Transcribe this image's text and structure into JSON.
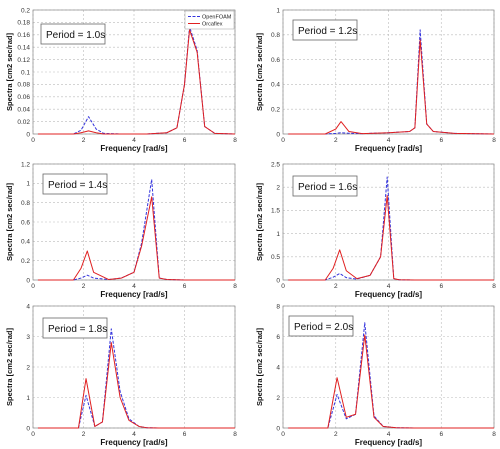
{
  "legend": {
    "position": "top-right of first panel",
    "entries": [
      {
        "label": "OpenFOAM",
        "color": "#3333dd",
        "dash": "dashed"
      },
      {
        "label": "Orcaflex",
        "color": "#e02020",
        "dash": "solid"
      }
    ]
  },
  "chart_data": [
    {
      "type": "line",
      "annotation": "Period = 1.0s",
      "xlabel": "Frequency [rad/s]",
      "ylabel": "Spectra [cm2 sec/rad]",
      "xlim": [
        0,
        8
      ],
      "ylim": [
        0,
        0.2
      ],
      "xticks": [
        0,
        2,
        4,
        6,
        8
      ],
      "yticks": [
        0,
        0.02,
        0.04,
        0.06,
        0.08,
        0.1,
        0.12,
        0.14,
        0.16,
        0.18,
        0.2
      ],
      "grid": true,
      "series": [
        {
          "name": "OpenFOAM",
          "color": "#3333dd",
          "dash": "dashed",
          "x": [
            0.2,
            1.6,
            1.9,
            2.2,
            2.5,
            2.8,
            3.5,
            4.5,
            5.3,
            5.7,
            6.0,
            6.2,
            6.5,
            6.8,
            7.2,
            8.0
          ],
          "y": [
            0.0,
            0.0,
            0.006,
            0.028,
            0.008,
            0.001,
            0.0,
            0.0,
            0.002,
            0.01,
            0.08,
            0.173,
            0.135,
            0.012,
            0.001,
            0.0
          ]
        },
        {
          "name": "Orcaflex",
          "color": "#e02020",
          "dash": "solid",
          "x": [
            0.2,
            1.6,
            1.9,
            2.2,
            2.5,
            2.8,
            3.5,
            4.5,
            5.3,
            5.7,
            6.0,
            6.2,
            6.5,
            6.8,
            7.2,
            8.0
          ],
          "y": [
            0.0,
            0.0,
            0.002,
            0.005,
            0.002,
            0.0,
            0.0,
            0.0,
            0.002,
            0.01,
            0.08,
            0.168,
            0.132,
            0.012,
            0.001,
            0.0
          ]
        }
      ]
    },
    {
      "type": "line",
      "annotation": "Period = 1.2s",
      "xlabel": "Frequency [rad/s]",
      "ylabel": "Spectra [cm2 sec/rad]",
      "xlim": [
        0,
        8
      ],
      "ylim": [
        0,
        1
      ],
      "xticks": [
        0,
        2,
        4,
        6,
        8
      ],
      "yticks": [
        0,
        0.2,
        0.4,
        0.6,
        0.8,
        1
      ],
      "grid": true,
      "series": [
        {
          "name": "OpenFOAM",
          "color": "#3333dd",
          "dash": "dashed",
          "x": [
            0.2,
            1.6,
            2.0,
            2.2,
            2.5,
            3.0,
            4.0,
            4.8,
            5.0,
            5.2,
            5.45,
            5.7,
            6.5,
            8.0
          ],
          "y": [
            0.0,
            0.0,
            0.005,
            0.01,
            0.006,
            0.003,
            0.01,
            0.02,
            0.05,
            0.84,
            0.08,
            0.02,
            0.005,
            0.0
          ]
        },
        {
          "name": "Orcaflex",
          "color": "#e02020",
          "dash": "solid",
          "x": [
            0.2,
            1.6,
            2.0,
            2.2,
            2.5,
            3.0,
            4.0,
            4.8,
            5.0,
            5.2,
            5.45,
            5.7,
            6.5,
            8.0
          ],
          "y": [
            0.0,
            0.0,
            0.04,
            0.1,
            0.02,
            0.003,
            0.01,
            0.02,
            0.05,
            0.76,
            0.08,
            0.02,
            0.005,
            0.0
          ]
        }
      ]
    },
    {
      "type": "line",
      "annotation": "Period = 1.4s",
      "xlabel": "Frequency [rad/s]",
      "ylabel": "Spectra [cm2 sec/rad]",
      "xlim": [
        0,
        8
      ],
      "ylim": [
        0,
        1.2
      ],
      "xticks": [
        0,
        2,
        4,
        6,
        8
      ],
      "yticks": [
        0,
        0.2,
        0.4,
        0.6,
        0.8,
        1,
        1.2
      ],
      "grid": true,
      "series": [
        {
          "name": "OpenFOAM",
          "color": "#3333dd",
          "dash": "dashed",
          "x": [
            0.2,
            1.6,
            1.9,
            2.15,
            2.4,
            3.0,
            3.5,
            4.0,
            4.3,
            4.7,
            5.0,
            5.3,
            6.0,
            8.0
          ],
          "y": [
            0.0,
            0.0,
            0.02,
            0.05,
            0.02,
            0.005,
            0.02,
            0.08,
            0.38,
            1.04,
            0.02,
            0.005,
            0.0,
            0.0
          ]
        },
        {
          "name": "Orcaflex",
          "color": "#e02020",
          "dash": "solid",
          "x": [
            0.2,
            1.6,
            1.9,
            2.15,
            2.4,
            3.0,
            3.5,
            4.0,
            4.3,
            4.7,
            5.0,
            5.3,
            6.0,
            8.0
          ],
          "y": [
            0.0,
            0.0,
            0.12,
            0.3,
            0.08,
            0.005,
            0.02,
            0.08,
            0.35,
            0.86,
            0.02,
            0.005,
            0.0,
            0.0
          ]
        }
      ]
    },
    {
      "type": "line",
      "annotation": "Period = 1.6s",
      "xlabel": "Frequency [rad/s]",
      "ylabel": "Spectra [cm2 sec/rad]",
      "xlim": [
        0,
        8
      ],
      "ylim": [
        0,
        2.5
      ],
      "xticks": [
        0,
        2,
        4,
        6,
        8
      ],
      "yticks": [
        0,
        0.5,
        1,
        1.5,
        2,
        2.5
      ],
      "grid": true,
      "series": [
        {
          "name": "OpenFOAM",
          "color": "#3333dd",
          "dash": "dashed",
          "x": [
            0.2,
            1.6,
            1.9,
            2.15,
            2.4,
            2.8,
            3.3,
            3.7,
            3.95,
            4.2,
            4.4,
            5.0,
            8.0
          ],
          "y": [
            0.0,
            0.0,
            0.06,
            0.14,
            0.05,
            0.02,
            0.1,
            0.5,
            2.22,
            0.03,
            0.005,
            0.0,
            0.0
          ]
        },
        {
          "name": "Orcaflex",
          "color": "#e02020",
          "dash": "solid",
          "x": [
            0.2,
            1.6,
            1.9,
            2.15,
            2.4,
            2.8,
            3.3,
            3.7,
            3.95,
            4.2,
            4.4,
            5.0,
            8.0
          ],
          "y": [
            0.0,
            0.0,
            0.25,
            0.65,
            0.2,
            0.03,
            0.1,
            0.5,
            1.82,
            0.03,
            0.005,
            0.0,
            0.0
          ]
        }
      ]
    },
    {
      "type": "line",
      "annotation": "Period = 1.8s",
      "xlabel": "Frequency [rad/s]",
      "ylabel": "Spectra [cm2 sec/rad]",
      "xlim": [
        0,
        8
      ],
      "ylim": [
        0,
        4
      ],
      "xticks": [
        0,
        2,
        4,
        6,
        8
      ],
      "yticks": [
        0,
        1,
        2,
        3,
        4
      ],
      "grid": true,
      "series": [
        {
          "name": "OpenFOAM",
          "color": "#3333dd",
          "dash": "dashed",
          "x": [
            0.2,
            1.8,
            2.1,
            2.45,
            2.75,
            3.1,
            3.45,
            3.8,
            4.2,
            4.5,
            5.0,
            8.0
          ],
          "y": [
            0.0,
            0.0,
            1.07,
            0.05,
            0.2,
            3.25,
            1.2,
            0.3,
            0.05,
            0.01,
            0.0,
            0.0
          ]
        },
        {
          "name": "Orcaflex",
          "color": "#e02020",
          "dash": "solid",
          "x": [
            0.2,
            1.8,
            2.1,
            2.45,
            2.75,
            3.1,
            3.45,
            3.8,
            4.2,
            4.5,
            5.0,
            8.0
          ],
          "y": [
            0.0,
            0.0,
            1.62,
            0.05,
            0.2,
            2.8,
            1.0,
            0.25,
            0.05,
            0.01,
            0.0,
            0.0
          ]
        }
      ]
    },
    {
      "type": "line",
      "annotation": "Period = 2.0s",
      "xlabel": "Frequency [rad/s]",
      "ylabel": "Spectra [cm2 sec/rad]",
      "xlim": [
        0,
        8
      ],
      "ylim": [
        0,
        8
      ],
      "xticks": [
        0,
        2,
        4,
        6,
        8
      ],
      "yticks": [
        0,
        2,
        4,
        6,
        8
      ],
      "grid": true,
      "series": [
        {
          "name": "OpenFOAM",
          "color": "#3333dd",
          "dash": "dashed",
          "x": [
            0.2,
            1.7,
            2.05,
            2.4,
            2.75,
            3.1,
            3.45,
            3.8,
            4.3,
            5.0,
            8.0
          ],
          "y": [
            0.0,
            0.0,
            2.2,
            0.6,
            0.9,
            6.9,
            0.8,
            0.1,
            0.02,
            0.0,
            0.0
          ]
        },
        {
          "name": "Orcaflex",
          "color": "#e02020",
          "dash": "solid",
          "x": [
            0.2,
            1.7,
            2.05,
            2.4,
            2.75,
            3.1,
            3.45,
            3.8,
            4.3,
            5.0,
            8.0
          ],
          "y": [
            0.0,
            0.0,
            3.3,
            0.7,
            0.9,
            6.1,
            0.7,
            0.1,
            0.02,
            0.0,
            0.0
          ]
        }
      ]
    }
  ]
}
